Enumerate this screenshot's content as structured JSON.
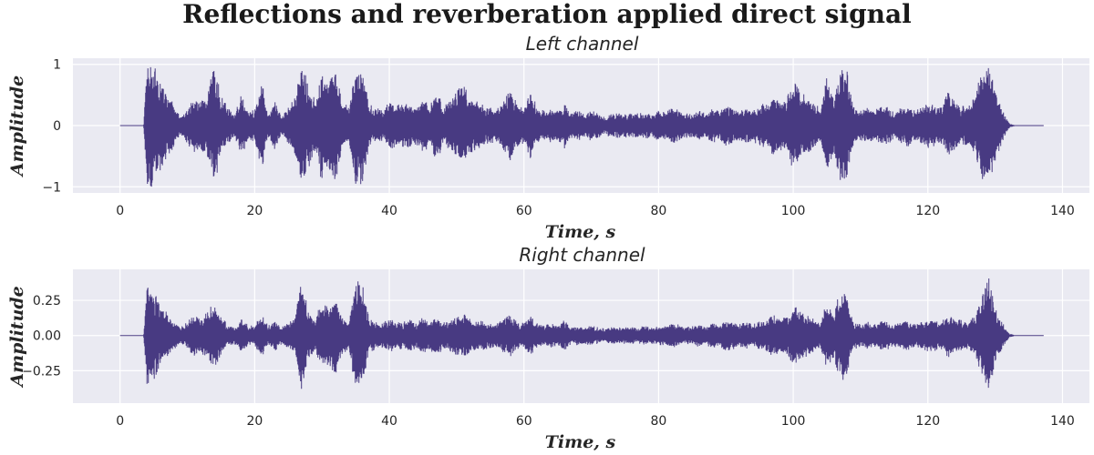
{
  "figure": {
    "suptitle": "Reflections and reverberation applied direct signal",
    "line_color": "#483a82",
    "background_color": "#eaeaf2"
  },
  "chart_data": [
    {
      "type": "line",
      "title": "Left channel",
      "xlabel": "Time, s",
      "ylabel": "Amplitude",
      "xlim": [
        -7,
        144
      ],
      "ylim": [
        -1.1,
        1.1
      ],
      "xticks": [
        0,
        20,
        40,
        60,
        80,
        100,
        120,
        140
      ],
      "xtick_labels": [
        "0",
        "20",
        "40",
        "60",
        "80",
        "100",
        "120",
        "140"
      ],
      "yticks": [
        1,
        0,
        -1
      ],
      "ytick_labels": [
        "1",
        "0",
        "−1"
      ],
      "grid": true,
      "legend": "none",
      "signal_start": 0,
      "signal_end": 137.2,
      "envelope": [
        [
          0,
          0
        ],
        [
          3.5,
          0
        ],
        [
          4,
          1.0
        ],
        [
          5,
          1.0
        ],
        [
          6,
          0.75
        ],
        [
          7,
          0.55
        ],
        [
          8,
          0.35
        ],
        [
          9,
          0.15
        ],
        [
          10,
          0.3
        ],
        [
          11,
          0.45
        ],
        [
          12,
          0.4
        ],
        [
          13,
          0.55
        ],
        [
          14,
          1.0
        ],
        [
          15,
          0.5
        ],
        [
          16,
          0.3
        ],
        [
          17,
          0.2
        ],
        [
          18,
          0.5
        ],
        [
          19,
          0.3
        ],
        [
          20,
          0.25
        ],
        [
          21,
          0.75
        ],
        [
          22,
          0.2
        ],
        [
          23,
          0.4
        ],
        [
          24,
          0.15
        ],
        [
          25,
          0.3
        ],
        [
          26,
          0.55
        ],
        [
          27,
          1.0
        ],
        [
          28,
          0.7
        ],
        [
          29,
          0.4
        ],
        [
          30,
          1.0
        ],
        [
          31,
          0.7
        ],
        [
          32,
          1.0
        ],
        [
          33,
          0.4
        ],
        [
          34,
          0.3
        ],
        [
          35,
          1.0
        ],
        [
          36,
          0.95
        ],
        [
          37,
          0.35
        ],
        [
          38,
          0.3
        ],
        [
          39,
          0.25
        ],
        [
          40,
          0.4
        ],
        [
          41,
          0.35
        ],
        [
          42,
          0.35
        ],
        [
          43,
          0.4
        ],
        [
          44,
          0.3
        ],
        [
          45,
          0.45
        ],
        [
          46,
          0.35
        ],
        [
          47,
          0.6
        ],
        [
          48,
          0.35
        ],
        [
          49,
          0.4
        ],
        [
          50,
          0.6
        ],
        [
          51,
          0.7
        ],
        [
          52,
          0.45
        ],
        [
          53,
          0.4
        ],
        [
          54,
          0.35
        ],
        [
          55,
          0.3
        ],
        [
          56,
          0.3
        ],
        [
          57,
          0.45
        ],
        [
          58,
          0.6
        ],
        [
          59,
          0.35
        ],
        [
          60,
          0.3
        ],
        [
          61,
          0.55
        ],
        [
          62,
          0.3
        ],
        [
          63,
          0.25
        ],
        [
          64,
          0.3
        ],
        [
          65,
          0.25
        ],
        [
          66,
          0.4
        ],
        [
          67,
          0.2
        ],
        [
          68,
          0.25
        ],
        [
          69,
          0.2
        ],
        [
          70,
          0.25
        ],
        [
          71,
          0.2
        ],
        [
          72,
          0.15
        ],
        [
          73,
          0.2
        ],
        [
          74,
          0.2
        ],
        [
          75,
          0.2
        ],
        [
          76,
          0.2
        ],
        [
          77,
          0.2
        ],
        [
          78,
          0.22
        ],
        [
          79,
          0.2
        ],
        [
          80,
          0.25
        ],
        [
          81,
          0.22
        ],
        [
          82,
          0.3
        ],
        [
          83,
          0.25
        ],
        [
          84,
          0.2
        ],
        [
          85,
          0.22
        ],
        [
          86,
          0.25
        ],
        [
          87,
          0.2
        ],
        [
          88,
          0.3
        ],
        [
          89,
          0.25
        ],
        [
          90,
          0.35
        ],
        [
          91,
          0.3
        ],
        [
          92,
          0.25
        ],
        [
          93,
          0.3
        ],
        [
          94,
          0.25
        ],
        [
          95,
          0.35
        ],
        [
          96,
          0.4
        ],
        [
          97,
          0.5
        ],
        [
          98,
          0.4
        ],
        [
          99,
          0.45
        ],
        [
          100,
          0.75
        ],
        [
          101,
          0.6
        ],
        [
          102,
          0.5
        ],
        [
          103,
          0.4
        ],
        [
          104,
          0.3
        ],
        [
          105,
          0.85
        ],
        [
          106,
          0.5
        ],
        [
          107,
          1.0
        ],
        [
          108,
          0.9
        ],
        [
          109,
          0.3
        ],
        [
          110,
          0.25
        ],
        [
          111,
          0.3
        ],
        [
          112,
          0.25
        ],
        [
          113,
          0.35
        ],
        [
          114,
          0.3
        ],
        [
          115,
          0.25
        ],
        [
          116,
          0.3
        ],
        [
          117,
          0.35
        ],
        [
          118,
          0.25
        ],
        [
          119,
          0.3
        ],
        [
          120,
          0.4
        ],
        [
          121,
          0.35
        ],
        [
          122,
          0.3
        ],
        [
          123,
          0.55
        ],
        [
          124,
          0.4
        ],
        [
          125,
          0.35
        ],
        [
          126,
          0.3
        ],
        [
          127,
          0.5
        ],
        [
          128,
          0.9
        ],
        [
          129,
          1.0
        ],
        [
          130,
          0.6
        ],
        [
          131,
          0.3
        ],
        [
          132,
          0.05
        ],
        [
          133,
          0
        ],
        [
          137.2,
          0
        ]
      ]
    },
    {
      "type": "line",
      "title": "Right channel",
      "xlabel": "Time, s",
      "ylabel": "Amplitude",
      "xlim": [
        -7,
        144
      ],
      "ylim": [
        -0.48,
        0.47
      ],
      "xticks": [
        0,
        20,
        40,
        60,
        80,
        100,
        120,
        140
      ],
      "xtick_labels": [
        "0",
        "20",
        "40",
        "60",
        "80",
        "100",
        "120",
        "140"
      ],
      "yticks": [
        0.25,
        0,
        -0.25
      ],
      "ytick_labels": [
        "0.25",
        "0.00",
        "−0.25"
      ],
      "grid": true,
      "legend": "none",
      "signal_start": 0,
      "signal_end": 137.2,
      "envelope": [
        [
          0,
          0
        ],
        [
          3.5,
          0
        ],
        [
          4,
          0.38
        ],
        [
          5,
          0.32
        ],
        [
          6,
          0.22
        ],
        [
          7,
          0.16
        ],
        [
          8,
          0.1
        ],
        [
          9,
          0.06
        ],
        [
          10,
          0.1
        ],
        [
          11,
          0.15
        ],
        [
          12,
          0.12
        ],
        [
          13,
          0.18
        ],
        [
          14,
          0.24
        ],
        [
          15,
          0.14
        ],
        [
          16,
          0.08
        ],
        [
          17,
          0.06
        ],
        [
          18,
          0.12
        ],
        [
          19,
          0.08
        ],
        [
          20,
          0.07
        ],
        [
          21,
          0.16
        ],
        [
          22,
          0.07
        ],
        [
          23,
          0.12
        ],
        [
          24,
          0.06
        ],
        [
          25,
          0.1
        ],
        [
          26,
          0.14
        ],
        [
          27,
          0.42
        ],
        [
          28,
          0.16
        ],
        [
          29,
          0.12
        ],
        [
          30,
          0.26
        ],
        [
          31,
          0.2
        ],
        [
          32,
          0.3
        ],
        [
          33,
          0.14
        ],
        [
          34,
          0.1
        ],
        [
          35,
          0.4
        ],
        [
          36,
          0.38
        ],
        [
          37,
          0.12
        ],
        [
          38,
          0.1
        ],
        [
          39,
          0.09
        ],
        [
          40,
          0.12
        ],
        [
          41,
          0.1
        ],
        [
          42,
          0.1
        ],
        [
          43,
          0.12
        ],
        [
          44,
          0.09
        ],
        [
          45,
          0.13
        ],
        [
          46,
          0.1
        ],
        [
          47,
          0.15
        ],
        [
          48,
          0.1
        ],
        [
          49,
          0.11
        ],
        [
          50,
          0.15
        ],
        [
          51,
          0.17
        ],
        [
          52,
          0.12
        ],
        [
          53,
          0.11
        ],
        [
          54,
          0.1
        ],
        [
          55,
          0.09
        ],
        [
          56,
          0.09
        ],
        [
          57,
          0.12
        ],
        [
          58,
          0.15
        ],
        [
          59,
          0.1
        ],
        [
          60,
          0.09
        ],
        [
          61,
          0.14
        ],
        [
          62,
          0.09
        ],
        [
          63,
          0.07
        ],
        [
          64,
          0.09
        ],
        [
          65,
          0.07
        ],
        [
          66,
          0.11
        ],
        [
          67,
          0.06
        ],
        [
          68,
          0.07
        ],
        [
          69,
          0.06
        ],
        [
          70,
          0.07
        ],
        [
          71,
          0.06
        ],
        [
          72,
          0.05
        ],
        [
          73,
          0.06
        ],
        [
          74,
          0.06
        ],
        [
          75,
          0.06
        ],
        [
          76,
          0.06
        ],
        [
          77,
          0.06
        ],
        [
          78,
          0.07
        ],
        [
          79,
          0.06
        ],
        [
          80,
          0.07
        ],
        [
          81,
          0.07
        ],
        [
          82,
          0.09
        ],
        [
          83,
          0.08
        ],
        [
          84,
          0.06
        ],
        [
          85,
          0.07
        ],
        [
          86,
          0.08
        ],
        [
          87,
          0.07
        ],
        [
          88,
          0.09
        ],
        [
          89,
          0.08
        ],
        [
          90,
          0.11
        ],
        [
          91,
          0.1
        ],
        [
          92,
          0.08
        ],
        [
          93,
          0.1
        ],
        [
          94,
          0.08
        ],
        [
          95,
          0.11
        ],
        [
          96,
          0.12
        ],
        [
          97,
          0.15
        ],
        [
          98,
          0.12
        ],
        [
          99,
          0.14
        ],
        [
          100,
          0.22
        ],
        [
          101,
          0.18
        ],
        [
          102,
          0.15
        ],
        [
          103,
          0.12
        ],
        [
          104,
          0.1
        ],
        [
          105,
          0.26
        ],
        [
          106,
          0.16
        ],
        [
          107,
          0.36
        ],
        [
          108,
          0.28
        ],
        [
          109,
          0.1
        ],
        [
          110,
          0.08
        ],
        [
          111,
          0.1
        ],
        [
          112,
          0.08
        ],
        [
          113,
          0.11
        ],
        [
          114,
          0.1
        ],
        [
          115,
          0.08
        ],
        [
          116,
          0.1
        ],
        [
          117,
          0.11
        ],
        [
          118,
          0.08
        ],
        [
          119,
          0.1
        ],
        [
          120,
          0.13
        ],
        [
          121,
          0.11
        ],
        [
          122,
          0.1
        ],
        [
          123,
          0.16
        ],
        [
          124,
          0.12
        ],
        [
          125,
          0.11
        ],
        [
          126,
          0.1
        ],
        [
          127,
          0.15
        ],
        [
          128,
          0.28
        ],
        [
          129,
          0.44
        ],
        [
          130,
          0.2
        ],
        [
          131,
          0.1
        ],
        [
          132,
          0.02
        ],
        [
          133,
          0
        ],
        [
          137.2,
          0
        ]
      ]
    }
  ]
}
